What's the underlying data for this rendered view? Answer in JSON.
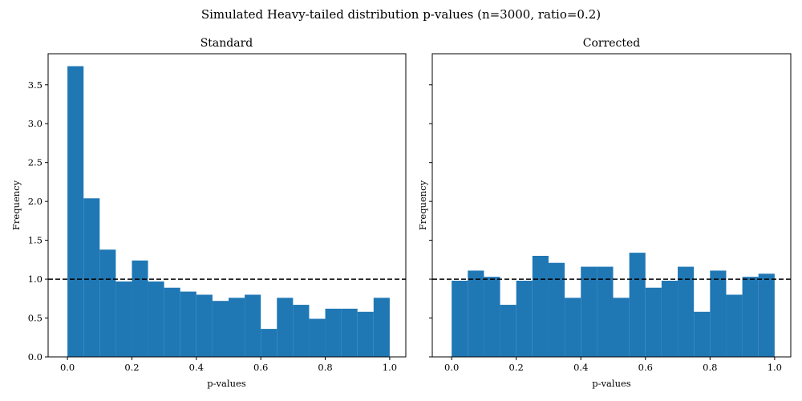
{
  "figure": {
    "suptitle": "Simulated Heavy-tailed distribution p-values (n=3000, ratio=0.2)"
  },
  "chart_data": [
    {
      "type": "bar",
      "title": "Standard",
      "xlabel": "p-values",
      "ylabel": "Frequency",
      "xlim": [
        -0.06,
        1.05
      ],
      "ylim": [
        0,
        3.9
      ],
      "xticks": [
        0.0,
        0.2,
        0.4,
        0.6,
        0.8,
        1.0
      ],
      "xtick_labels": [
        "0.0",
        "0.2",
        "0.4",
        "0.6",
        "0.8",
        "1.0"
      ],
      "yticks": [
        0.0,
        0.5,
        1.0,
        1.5,
        2.0,
        2.5,
        3.0,
        3.5
      ],
      "ytick_labels": [
        "0.0",
        "0.5",
        "1.0",
        "1.5",
        "2.0",
        "2.5",
        "3.0",
        "3.5"
      ],
      "bin_edges": [
        0,
        0.05,
        0.1,
        0.15,
        0.2,
        0.25,
        0.3,
        0.35,
        0.4,
        0.45,
        0.5,
        0.55,
        0.6,
        0.65,
        0.7,
        0.75,
        0.8,
        0.85,
        0.9,
        0.95,
        1.0
      ],
      "values": [
        3.74,
        2.04,
        1.38,
        0.97,
        1.24,
        0.97,
        0.89,
        0.84,
        0.8,
        0.72,
        0.76,
        0.8,
        0.36,
        0.76,
        0.67,
        0.49,
        0.62,
        0.62,
        0.58,
        0.76
      ],
      "reference_line": 1.0,
      "bar_color": "#1f77b4",
      "line_color": "#000000"
    },
    {
      "type": "bar",
      "title": "Corrected",
      "xlabel": "p-values",
      "ylabel": "Frequency",
      "xlim": [
        -0.06,
        1.05
      ],
      "ylim": [
        0,
        3.9
      ],
      "xticks": [
        0.0,
        0.2,
        0.4,
        0.6,
        0.8,
        1.0
      ],
      "xtick_labels": [
        "0.0",
        "0.2",
        "0.4",
        "0.6",
        "0.8",
        "1.0"
      ],
      "yticks": [
        0.0,
        0.5,
        1.0,
        1.5,
        2.0,
        2.5,
        3.0,
        3.5
      ],
      "ytick_labels": [],
      "bin_edges": [
        0,
        0.05,
        0.1,
        0.15,
        0.2,
        0.25,
        0.3,
        0.35,
        0.4,
        0.45,
        0.5,
        0.55,
        0.6,
        0.65,
        0.7,
        0.75,
        0.8,
        0.85,
        0.9,
        0.95,
        1.0
      ],
      "values": [
        0.98,
        1.11,
        1.03,
        0.67,
        0.98,
        1.3,
        1.21,
        0.76,
        1.16,
        1.16,
        0.76,
        1.34,
        0.89,
        0.98,
        1.16,
        0.58,
        1.11,
        0.8,
        1.03,
        1.07
      ],
      "reference_line": 1.0,
      "bar_color": "#1f77b4",
      "line_color": "#000000"
    }
  ]
}
